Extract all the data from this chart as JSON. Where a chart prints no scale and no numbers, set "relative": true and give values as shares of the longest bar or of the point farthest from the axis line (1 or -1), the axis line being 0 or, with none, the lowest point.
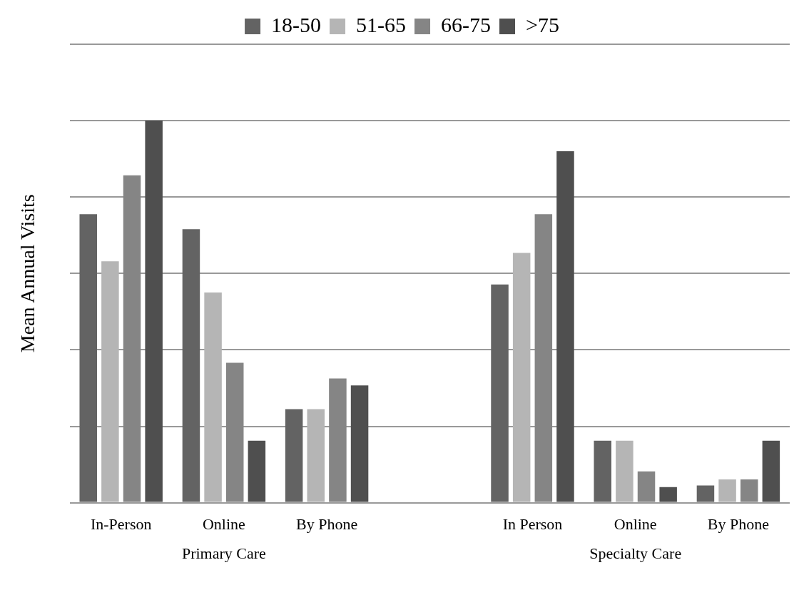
{
  "chart_data": {
    "type": "bar",
    "relative": true,
    "ylabel": "Mean Annual Visits",
    "categories": [
      "In-Person",
      "Online",
      "By Phone",
      null,
      "In Person",
      "Online",
      "By Phone"
    ],
    "series": [
      {
        "name": "18-50",
        "color": "#636363",
        "values": [
          0.755,
          0.716,
          0.245,
          null,
          0.571,
          0.162,
          0.045
        ]
      },
      {
        "name": "51-65",
        "color": "#b5b5b5",
        "values": [
          0.632,
          0.55,
          0.245,
          null,
          0.654,
          0.162,
          0.061
        ]
      },
      {
        "name": "66-75",
        "color": "#858585",
        "values": [
          0.857,
          0.366,
          0.325,
          null,
          0.755,
          0.082,
          0.061
        ]
      },
      {
        "name": ">75",
        "color": "#4f4f4f",
        "values": [
          1,
          0.162,
          0.307,
          null,
          0.92,
          0.041,
          0.162
        ]
      }
    ],
    "annotations": [
      "Primary Care",
      "Specialty Care"
    ],
    "grid": "y",
    "legend": "top"
  }
}
